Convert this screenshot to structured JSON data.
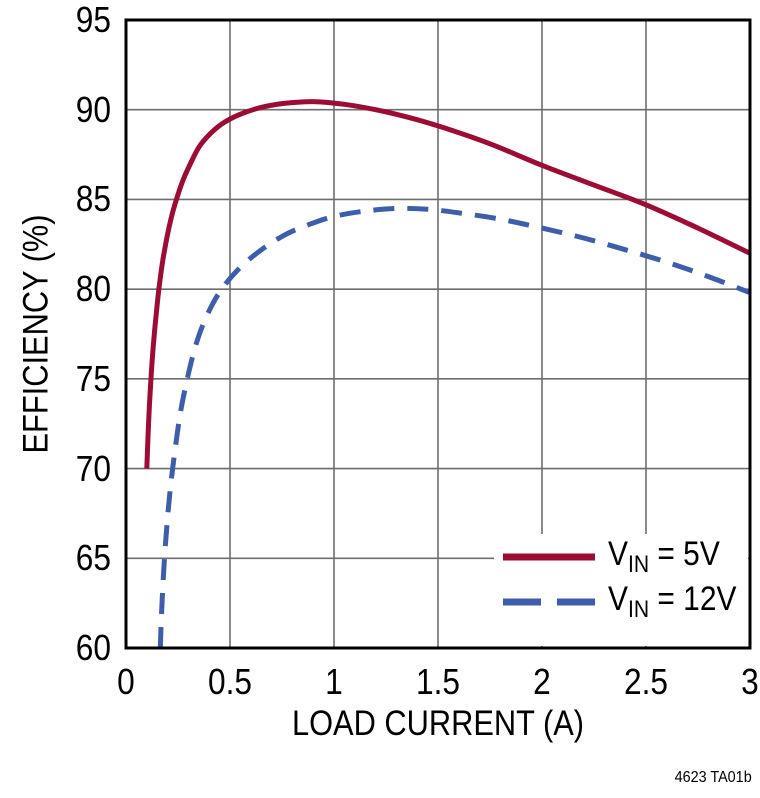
{
  "chart_data": {
    "type": "line",
    "title": "",
    "xlabel": "LOAD CURRENT (A)",
    "ylabel": "EFFICIENCY (%)",
    "xlim": [
      0,
      3
    ],
    "ylim": [
      60,
      95
    ],
    "x_ticks": [
      0,
      0.5,
      1,
      1.5,
      2,
      2.5,
      3
    ],
    "x_tick_labels": [
      "0",
      "0.5",
      "1",
      "1.5",
      "2",
      "2.5",
      "3"
    ],
    "y_ticks": [
      60,
      65,
      70,
      75,
      80,
      85,
      90,
      95
    ],
    "y_tick_labels": [
      "60",
      "65",
      "70",
      "75",
      "80",
      "85",
      "90",
      "95"
    ],
    "grid": true,
    "legend_position": "inside-bottom-right",
    "series": [
      {
        "name": "VIN = 5V",
        "label_pre": "V",
        "label_sub": "IN",
        "label_post": " = 5V",
        "color": "#9C0D35",
        "style": "solid",
        "x": [
          0.1,
          0.106,
          0.113,
          0.122,
          0.133,
          0.146,
          0.16,
          0.177,
          0.197,
          0.22,
          0.245,
          0.275,
          0.31,
          0.35,
          0.4,
          0.46,
          0.54,
          0.64,
          0.76,
          0.9,
          1.05,
          1.2,
          1.35,
          1.5,
          1.75,
          2.0,
          2.25,
          2.5,
          2.75,
          3.0
        ],
        "y": [
          70.0,
          71.8,
          73.6,
          75.4,
          77.1,
          78.7,
          80.2,
          81.6,
          82.9,
          84.1,
          85.1,
          86.1,
          87.0,
          87.9,
          88.6,
          89.2,
          89.7,
          90.1,
          90.35,
          90.45,
          90.3,
          90.0,
          89.6,
          89.1,
          88.1,
          86.9,
          85.8,
          84.7,
          83.4,
          82.0
        ]
      },
      {
        "name": "VIN = 12V",
        "label_pre": "V",
        "label_sub": "IN",
        "label_post": " = 12V",
        "color": "#3E5EAB",
        "style": "dashed",
        "x": [
          0.165,
          0.17,
          0.177,
          0.185,
          0.195,
          0.207,
          0.222,
          0.24,
          0.26,
          0.285,
          0.315,
          0.35,
          0.4,
          0.46,
          0.54,
          0.64,
          0.76,
          0.88,
          1.0,
          1.15,
          1.3,
          1.45,
          1.6,
          1.8,
          2.0,
          2.2,
          2.4,
          2.6,
          2.8,
          3.0
        ],
        "y": [
          60.0,
          61.7,
          63.4,
          65.0,
          66.6,
          68.2,
          69.8,
          71.4,
          73.0,
          74.5,
          76.0,
          77.4,
          78.8,
          80.0,
          81.1,
          82.1,
          83.0,
          83.6,
          84.05,
          84.35,
          84.5,
          84.45,
          84.25,
          83.9,
          83.4,
          82.85,
          82.2,
          81.5,
          80.7,
          79.8
        ]
      }
    ],
    "caption": "4623 TA01b"
  },
  "colors": {
    "background": "#FFFFFF",
    "frame": "#000000",
    "grid": "#6E6E6E",
    "text": "#000000",
    "series_red": "#9C0D35",
    "series_blue": "#3E5EAB"
  }
}
